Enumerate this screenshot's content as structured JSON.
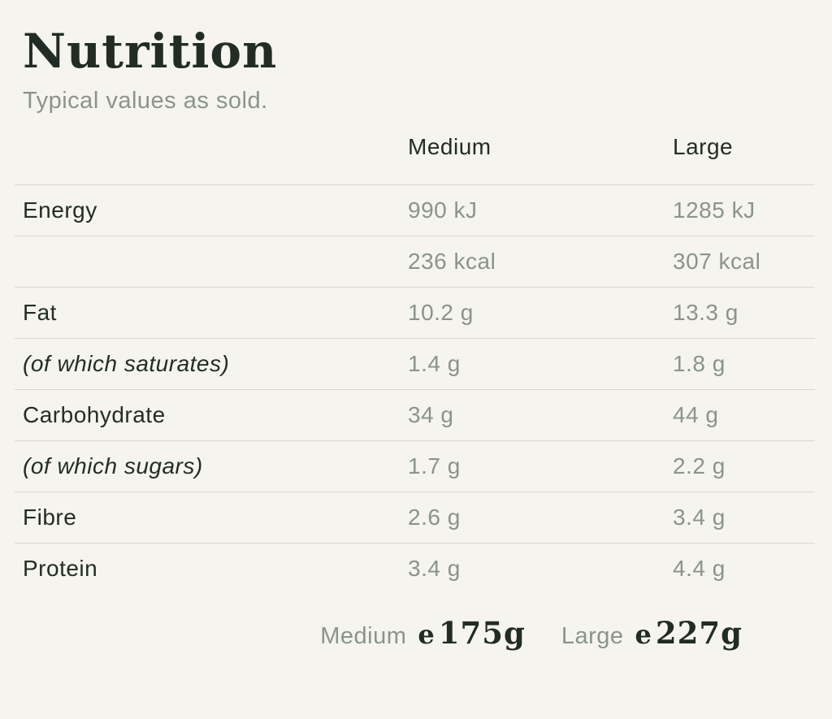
{
  "page": {
    "title": "Nutrition",
    "subtitle": "Typical values as sold."
  },
  "colors": {
    "background": "#f5f4ee",
    "text_dark": "#232d25",
    "text_muted": "#8b948a",
    "divider": "#d9d9d1"
  },
  "table": {
    "columns": [
      "",
      "Medium",
      "Large"
    ],
    "rows": [
      {
        "label": "Energy",
        "italic": false,
        "medium": "990 kJ",
        "large": "1285 kJ"
      },
      {
        "label": "",
        "italic": false,
        "medium": "236 kcal",
        "large": "307 kcal"
      },
      {
        "label": "Fat",
        "italic": false,
        "medium": "10.2 g",
        "large": "13.3 g"
      },
      {
        "label": "(of which saturates)",
        "italic": true,
        "medium": "1.4 g",
        "large": "1.8 g"
      },
      {
        "label": "Carbohydrate",
        "italic": false,
        "medium": "34 g",
        "large": "44 g"
      },
      {
        "label": "(of which sugars)",
        "italic": true,
        "medium": "1.7 g",
        "large": "2.2 g"
      },
      {
        "label": "Fibre",
        "italic": false,
        "medium": "2.6 g",
        "large": "3.4 g"
      },
      {
        "label": "Protein",
        "italic": false,
        "medium": "3.4 g",
        "large": "4.4 g"
      }
    ]
  },
  "footer": {
    "weights": [
      {
        "label": "Medium",
        "estimate_symbol": "e",
        "value": "175g"
      },
      {
        "label": "Large",
        "estimate_symbol": "e",
        "value": "227g"
      }
    ]
  }
}
